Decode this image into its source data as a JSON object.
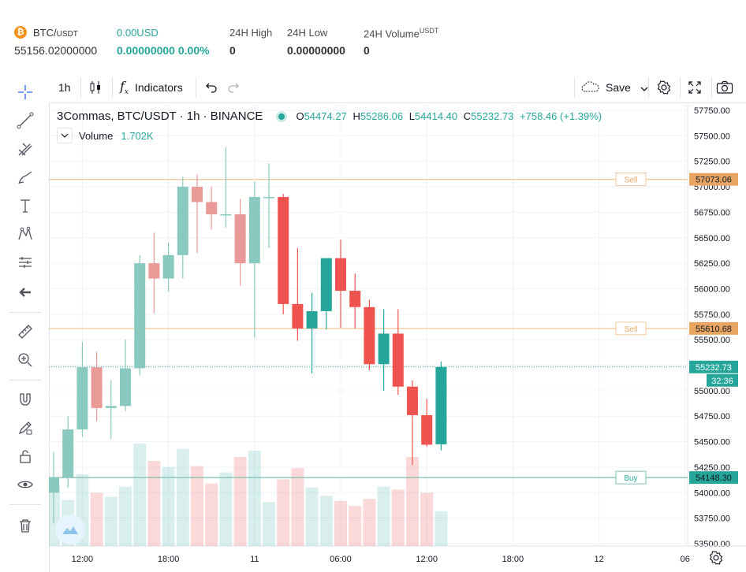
{
  "header": {
    "pair": "BTC/",
    "pair_quote": "USDT",
    "last_price": "55156.02000000",
    "change_usd": "0.00USD",
    "change_value": "0.00000000 0.00%",
    "high_label": "24H High",
    "high_value": "0",
    "low_label": "24H Low",
    "low_value": "0.00000000",
    "volume_label": "24H Volume",
    "volume_unit": "USDT",
    "volume_value": "0"
  },
  "toolbar": {
    "interval": "1h",
    "indicators_label": "Indicators",
    "save_label": "Save"
  },
  "legend": {
    "title": "3Commas, BTC/USDT · 1h · BINANCE",
    "o_label": "O",
    "o": "54474.27",
    "h_label": "H",
    "h": "55286.06",
    "l_label": "L",
    "l": "54414.40",
    "c_label": "C",
    "c": "55232.73",
    "change": "+758.46 (+1.39%)",
    "volume_label": "Volume",
    "volume_value": "1.702K"
  },
  "colors": {
    "up": "#26a69a",
    "down": "#ef5350",
    "sell_line": "#f0c89a",
    "buy_line": "#7bbfb0"
  },
  "chart_data": {
    "type": "candlestick",
    "ylim": [
      53500,
      57750
    ],
    "y_ticks": [
      "57750.00",
      "57500.00",
      "57250.00",
      "57000.00",
      "56750.00",
      "56500.00",
      "56250.00",
      "56000.00",
      "55750.00",
      "55500.00",
      "55250.00",
      "55000.00",
      "54750.00",
      "54500.00",
      "54250.00",
      "54000.00",
      "53750.00",
      "53500.00"
    ],
    "x_ticks": [
      "12:00",
      "18:00",
      "11",
      "06:00",
      "12:00",
      "18:00",
      "12",
      "06"
    ],
    "candles": [
      {
        "o": 54000,
        "h": 54400,
        "l": 53700,
        "c": 54150
      },
      {
        "o": 54150,
        "h": 54750,
        "l": 54050,
        "c": 54620
      },
      {
        "o": 54620,
        "h": 55480,
        "l": 54550,
        "c": 55230
      },
      {
        "o": 55230,
        "h": 55380,
        "l": 54700,
        "c": 54830
      },
      {
        "o": 54830,
        "h": 55100,
        "l": 54530,
        "c": 54850
      },
      {
        "o": 54850,
        "h": 55500,
        "l": 54800,
        "c": 55220
      },
      {
        "o": 55220,
        "h": 56330,
        "l": 55150,
        "c": 56250
      },
      {
        "o": 56250,
        "h": 56550,
        "l": 55760,
        "c": 56100
      },
      {
        "o": 56100,
        "h": 56450,
        "l": 55970,
        "c": 56330
      },
      {
        "o": 56330,
        "h": 57100,
        "l": 56100,
        "c": 57000
      },
      {
        "o": 57000,
        "h": 57120,
        "l": 56350,
        "c": 56850
      },
      {
        "o": 56850,
        "h": 57000,
        "l": 56580,
        "c": 56730
      },
      {
        "o": 56730,
        "h": 57390,
        "l": 56600,
        "c": 56730
      },
      {
        "o": 56730,
        "h": 56880,
        "l": 56030,
        "c": 56250
      },
      {
        "o": 56250,
        "h": 57050,
        "l": 55520,
        "c": 56900
      },
      {
        "o": 56900,
        "h": 57230,
        "l": 56400,
        "c": 56900
      },
      {
        "o": 56900,
        "h": 56930,
        "l": 55750,
        "c": 55850
      },
      {
        "o": 55850,
        "h": 56400,
        "l": 55490,
        "c": 55610
      },
      {
        "o": 55610,
        "h": 55960,
        "l": 55170,
        "c": 55780
      },
      {
        "o": 55780,
        "h": 56300,
        "l": 55600,
        "c": 56300
      },
      {
        "o": 56300,
        "h": 56480,
        "l": 55620,
        "c": 55980
      },
      {
        "o": 55980,
        "h": 56150,
        "l": 55610,
        "c": 55820
      },
      {
        "o": 55820,
        "h": 55890,
        "l": 55200,
        "c": 55260
      },
      {
        "o": 55260,
        "h": 55800,
        "l": 55000,
        "c": 55560
      },
      {
        "o": 55560,
        "h": 55800,
        "l": 54960,
        "c": 55040
      },
      {
        "o": 55040,
        "h": 55100,
        "l": 54270,
        "c": 54760
      },
      {
        "o": 54760,
        "h": 54920,
        "l": 54450,
        "c": 54470
      },
      {
        "o": 54474.27,
        "h": 55286.06,
        "l": 54414.4,
        "c": 55232.73
      }
    ],
    "volumes": [
      0.6,
      0.45,
      0.7,
      0.52,
      0.48,
      0.58,
      1.0,
      0.83,
      0.77,
      0.95,
      0.78,
      0.61,
      0.72,
      0.87,
      0.93,
      0.43,
      0.65,
      0.76,
      0.57,
      0.49,
      0.44,
      0.39,
      0.46,
      0.58,
      0.55,
      0.87,
      0.52,
      0.34
    ],
    "horizontal_lines": [
      {
        "label": "Sell",
        "value": 57073.06,
        "value_text": "57073.06",
        "kind": "sell"
      },
      {
        "label": "Sell",
        "value": 55610.68,
        "value_text": "55610.68",
        "kind": "sell"
      },
      {
        "label": "Buy",
        "value": 54148.3,
        "value_text": "54148.30",
        "kind": "buy"
      }
    ],
    "last_price": {
      "value": 55232.73,
      "value_text": "55232.73",
      "countdown": "32:36"
    }
  }
}
